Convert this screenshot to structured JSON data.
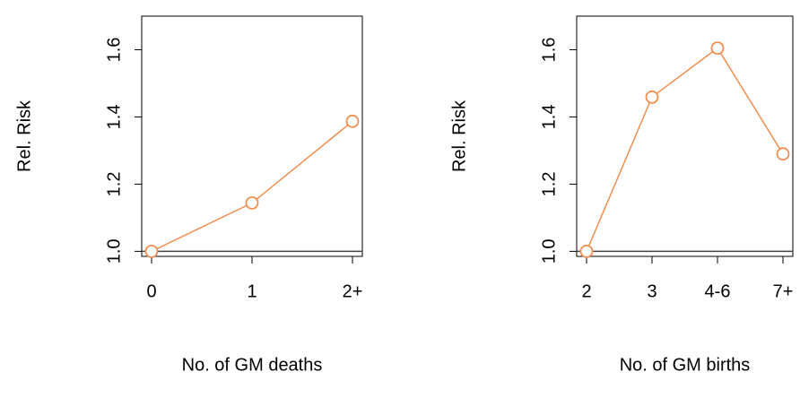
{
  "chart_data": [
    {
      "type": "line",
      "xlabel": "No. of GM deaths",
      "ylabel": "Rel. Risk",
      "categories": [
        "0",
        "1",
        "2+"
      ],
      "series": [
        {
          "color": "#f28e4f",
          "values": [
            1.0,
            1.144,
            1.387
          ]
        }
      ],
      "reference_line": 1,
      "ylim": [
        0.985,
        1.7
      ],
      "yticks": [
        {
          "value": 1,
          "label": "1.0"
        },
        {
          "value": 1.2,
          "label": "1.2"
        },
        {
          "value": 1.4,
          "label": "1.4"
        },
        {
          "value": 1.6,
          "label": "1.6"
        }
      ]
    },
    {
      "type": "line",
      "xlabel": "No. of GM births",
      "ylabel": "Rel. Risk",
      "categories": [
        "2",
        "3",
        "4-6",
        "7+"
      ],
      "series": [
        {
          "color": "#f28e4f",
          "values": [
            1.0,
            1.459,
            1.605,
            1.29
          ]
        }
      ],
      "reference_line": 1,
      "ylim": [
        0.985,
        1.7
      ],
      "yticks": [
        {
          "value": 1,
          "label": "1.0"
        },
        {
          "value": 1.2,
          "label": "1.2"
        },
        {
          "value": 1.4,
          "label": "1.4"
        },
        {
          "value": 1.6,
          "label": "1.6"
        }
      ]
    }
  ]
}
